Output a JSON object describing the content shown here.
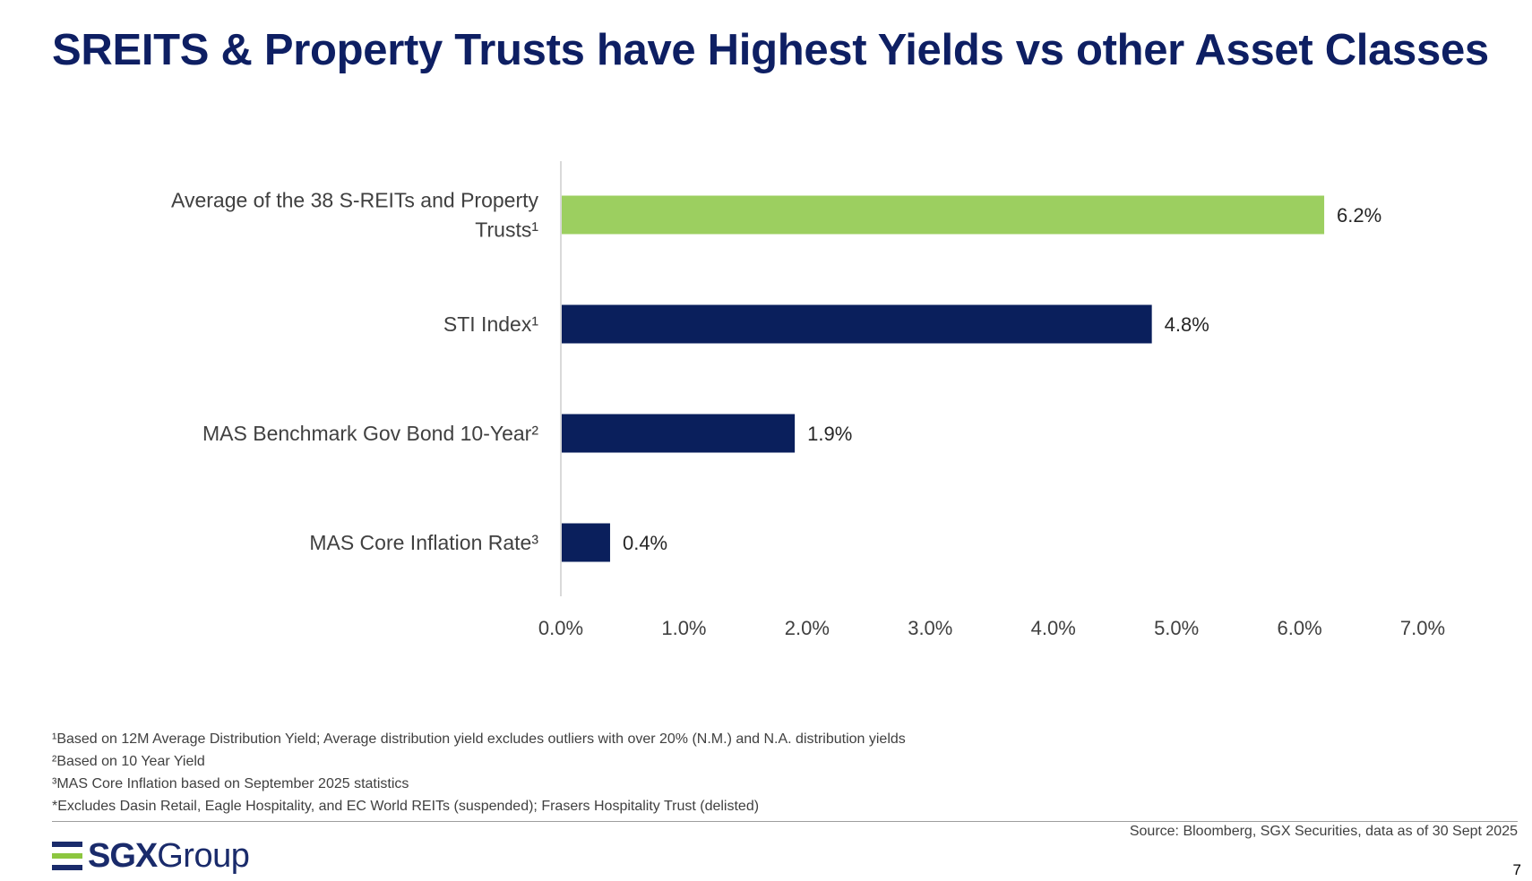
{
  "title": "SREITS & Property Trusts have Highest Yields vs other Asset Classes",
  "colors": {
    "title": "#0e1f63",
    "highlight_bar": "#9ccf60",
    "bar": "#0a1f5c",
    "axis": "#d9d9d9",
    "logo_navy": "#1a2b6b",
    "logo_green": "#8cc63f"
  },
  "chart_data": {
    "type": "bar",
    "orientation": "horizontal",
    "categories": [
      "Average of the 38 S-REITs and Property Trusts¹",
      "STI Index¹",
      "MAS Benchmark Gov Bond 10-Year²",
      "MAS Core Inflation Rate³"
    ],
    "category_lines": [
      [
        "Average of the 38 S-REITs and Property",
        "Trusts¹"
      ],
      [
        "STI Index¹"
      ],
      [
        "MAS Benchmark Gov Bond 10-Year²"
      ],
      [
        "MAS Core Inflation Rate³"
      ]
    ],
    "values": [
      6.2,
      4.8,
      1.9,
      0.4
    ],
    "value_labels": [
      "6.2%",
      "4.8%",
      "1.9%",
      "0.4%"
    ],
    "highlight_index": 0,
    "xlim": [
      0,
      7
    ],
    "x_ticks": [
      0,
      1,
      2,
      3,
      4,
      5,
      6,
      7
    ],
    "x_tick_labels": [
      "0.0%",
      "1.0%",
      "2.0%",
      "3.0%",
      "4.0%",
      "5.0%",
      "6.0%",
      "7.0%"
    ],
    "grid": false,
    "xlabel": "",
    "ylabel": ""
  },
  "footnotes": [
    "¹Based on 12M Average Distribution Yield; Average distribution yield excludes outliers with over 20% (N.M.) and N.A. distribution yields",
    "²Based on 10 Year Yield",
    "³MAS Core Inflation based on September 2025 statistics",
    "*Excludes Dasin Retail, Eagle Hospitality, and EC World REITs (suspended); Frasers Hospitality Trust (delisted)"
  ],
  "source": "Source: Bloomberg, SGX Securities, data as of 30 Sept 2025",
  "logo": {
    "bold_text": "SGX",
    "light_text": "Group"
  },
  "page_number": "7"
}
